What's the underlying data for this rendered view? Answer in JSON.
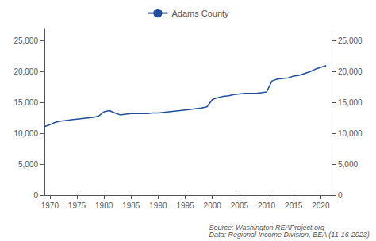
{
  "chart_data": {
    "type": "line",
    "x": [
      1969,
      1970,
      1971,
      1972,
      1973,
      1974,
      1975,
      1976,
      1977,
      1978,
      1979,
      1980,
      1981,
      1982,
      1983,
      1984,
      1985,
      1986,
      1987,
      1988,
      1989,
      1990,
      1991,
      1992,
      1993,
      1994,
      1995,
      1996,
      1997,
      1998,
      1999,
      2000,
      2001,
      2002,
      2003,
      2004,
      2005,
      2006,
      2007,
      2008,
      2009,
      2010,
      2011,
      2012,
      2013,
      2014,
      2015,
      2016,
      2017,
      2018,
      2019,
      2020,
      2021
    ],
    "series": [
      {
        "name": "Adams County",
        "color": "#1f4e9c",
        "values": [
          11100,
          11400,
          11800,
          12000,
          12100,
          12200,
          12300,
          12400,
          12500,
          12600,
          12800,
          13500,
          13700,
          13300,
          13000,
          13100,
          13200,
          13200,
          13200,
          13200,
          13300,
          13300,
          13400,
          13500,
          13600,
          13700,
          13800,
          13900,
          14000,
          14100,
          14300,
          15500,
          15800,
          16000,
          16100,
          16300,
          16400,
          16500,
          16500,
          16500,
          16600,
          16700,
          18500,
          18800,
          18900,
          19000,
          19300,
          19400,
          19700,
          20000,
          20400,
          20700,
          21000
        ]
      }
    ],
    "xlim": [
      1969,
      2022
    ],
    "xticks": [
      1970,
      1975,
      1980,
      1985,
      1990,
      1995,
      2000,
      2005,
      2010,
      2015,
      2020
    ],
    "ylim": [
      0,
      27000
    ],
    "yticks": [
      0,
      {
        "value": 5000,
        "label": "5,000"
      },
      {
        "value": 10000,
        "label": "10,000"
      },
      {
        "value": 15000,
        "label": "15,000"
      },
      {
        "value": 20000,
        "label": "20,000"
      },
      {
        "value": 25000,
        "label": "25,000"
      }
    ],
    "y2lim": [
      0,
      27000
    ],
    "y2ticks": [
      0,
      {
        "value": 5000,
        "label": "5,000"
      },
      {
        "value": 10000,
        "label": "10,000"
      },
      {
        "value": 15000,
        "label": "15,000"
      },
      {
        "value": 20000,
        "label": "20,000"
      },
      {
        "value": 25000,
        "label": "25,000"
      }
    ],
    "annotations": [
      "Source: Washington.REAProject.org\nData: Regional Income Division, BEA (11-16-2023)"
    ],
    "legend": "top",
    "grid": false
  }
}
